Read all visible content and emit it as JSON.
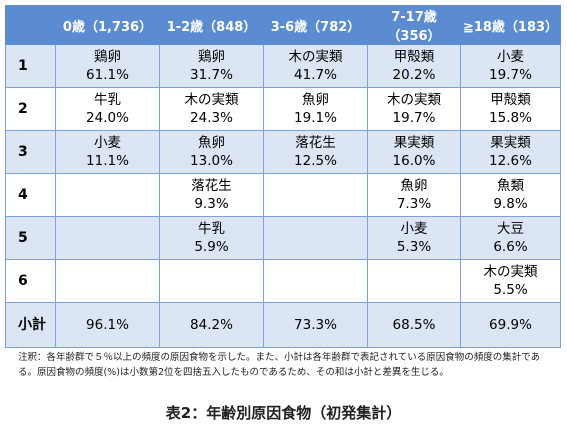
{
  "table": {
    "columns": [
      "0歳（1,736）",
      "1-2歳（848）",
      "3-6歳（782）",
      "7-17歳（356）",
      "≧18歳（183）"
    ],
    "rows": [
      {
        "label": "1",
        "cells": [
          {
            "food": "鶏卵",
            "pct": "61.1%"
          },
          {
            "food": "鶏卵",
            "pct": "31.7%"
          },
          {
            "food": "木の実類",
            "pct": "41.7%"
          },
          {
            "food": "甲殻類",
            "pct": "20.2%"
          },
          {
            "food": "小麦",
            "pct": "19.7%"
          }
        ]
      },
      {
        "label": "2",
        "cells": [
          {
            "food": "牛乳",
            "pct": "24.0%"
          },
          {
            "food": "木の実類",
            "pct": "24.3%"
          },
          {
            "food": "魚卵",
            "pct": "19.1%"
          },
          {
            "food": "木の実類",
            "pct": "19.7%"
          },
          {
            "food": "甲殻類",
            "pct": "15.8%"
          }
        ]
      },
      {
        "label": "3",
        "cells": [
          {
            "food": "小麦",
            "pct": "11.1%"
          },
          {
            "food": "魚卵",
            "pct": "13.0%"
          },
          {
            "food": "落花生",
            "pct": "12.5%"
          },
          {
            "food": "果実類",
            "pct": "16.0%"
          },
          {
            "food": "果実類",
            "pct": "12.6%"
          }
        ]
      },
      {
        "label": "4",
        "cells": [
          null,
          {
            "food": "落花生",
            "pct": "9.3%"
          },
          null,
          {
            "food": "魚卵",
            "pct": "7.3%"
          },
          {
            "food": "魚類",
            "pct": "9.8%"
          }
        ]
      },
      {
        "label": "5",
        "cells": [
          null,
          {
            "food": "牛乳",
            "pct": "5.9%"
          },
          null,
          {
            "food": "小麦",
            "pct": "5.3%"
          },
          {
            "food": "大豆",
            "pct": "6.6%"
          }
        ]
      },
      {
        "label": "6",
        "cells": [
          null,
          null,
          null,
          null,
          {
            "food": "木の実類",
            "pct": "5.5%"
          }
        ]
      }
    ],
    "subtotal": {
      "label": "小計",
      "values": [
        "96.1%",
        "84.2%",
        "73.3%",
        "68.5%",
        "69.9%"
      ]
    }
  },
  "note": "注釈：各年齢群で５％以上の頻度の原因食物を示した。また、小計は各年齢群で表記されている原因食物の頻度の集計である。原因食物の頻度(%)は小数第2位を四捨五入したものであるため、その和は小計と差異を生じる。",
  "caption": "表2：年齢別原因食物（初発集計）"
}
